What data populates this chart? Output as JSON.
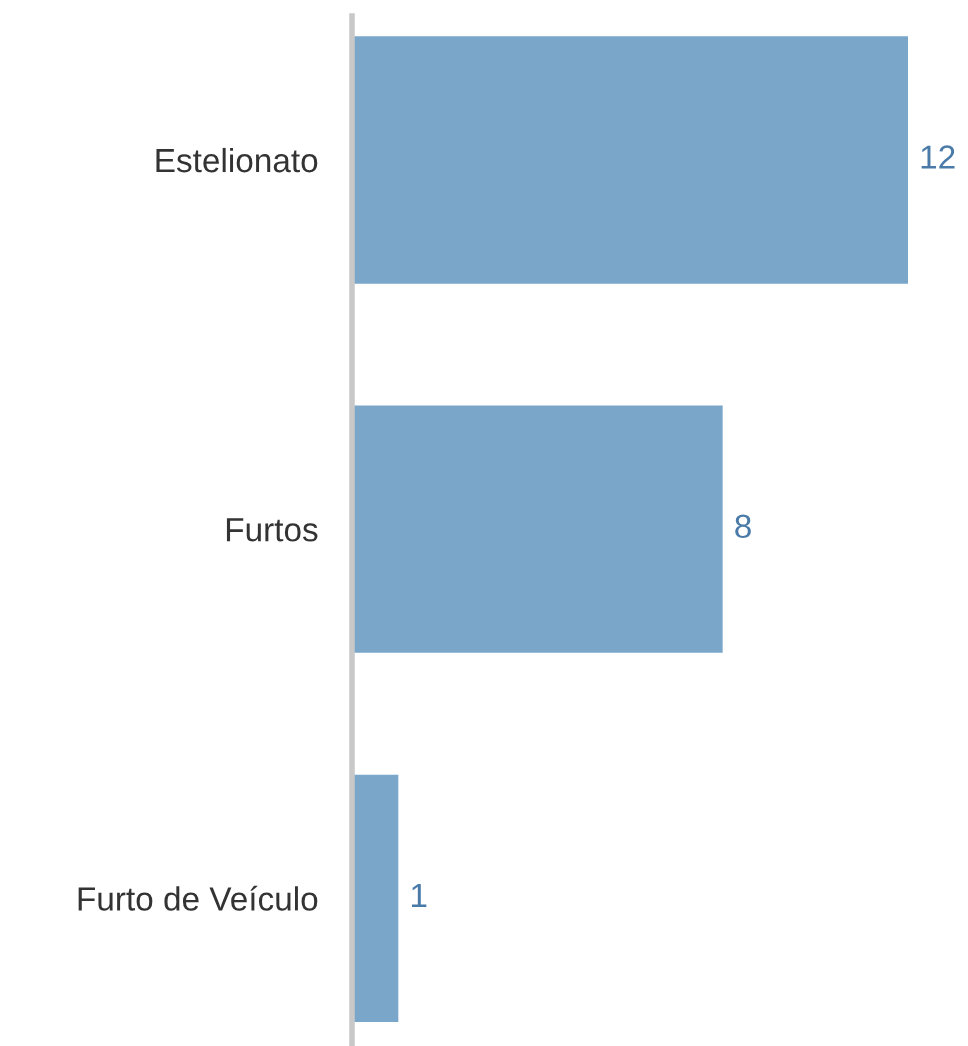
{
  "chart_data": {
    "type": "bar",
    "orientation": "horizontal",
    "categories": [
      "Estelionato",
      "Furtos",
      "Furto de Veículo"
    ],
    "values": [
      12,
      8,
      1
    ],
    "color": "#7aa6c9",
    "data_labels": true,
    "grid": false,
    "legend": false
  }
}
